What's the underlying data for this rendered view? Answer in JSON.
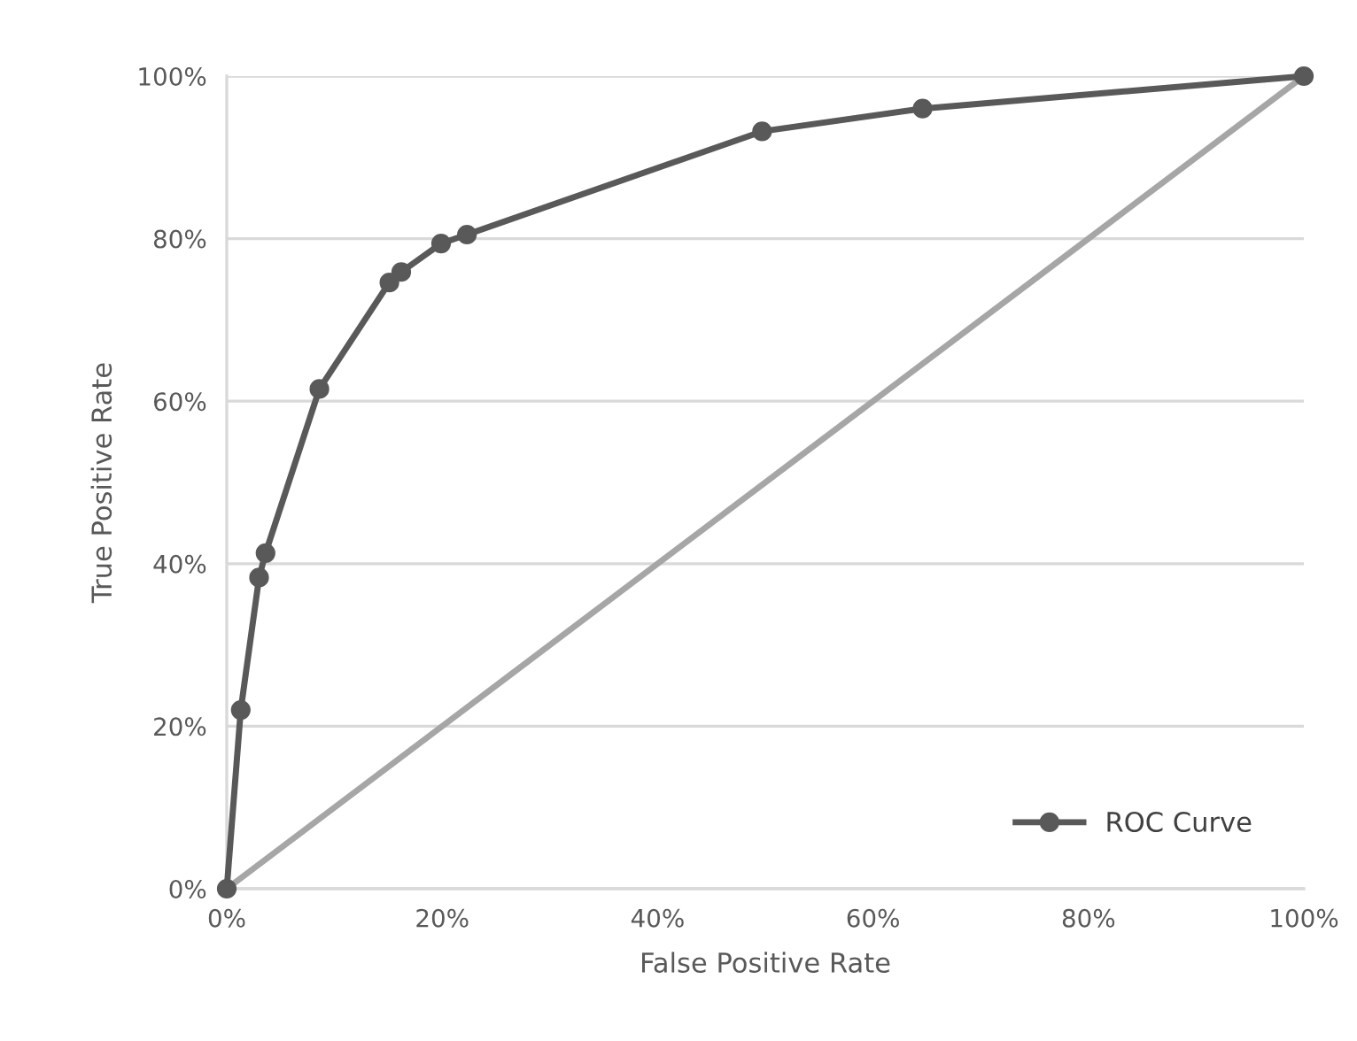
{
  "chart_data": {
    "type": "line",
    "xlabel": "False Positive Rate",
    "ylabel": "True Positive Rate",
    "series": [
      {
        "name": "ROC Curve",
        "color": "#595959",
        "marker": "circle",
        "x": [
          0,
          1.3,
          3.0,
          3.6,
          8.6,
          15.1,
          16.2,
          19.9,
          22.3,
          49.7,
          64.6,
          100
        ],
        "values": [
          0,
          22.0,
          38.3,
          41.3,
          61.5,
          74.6,
          75.9,
          79.4,
          80.5,
          93.2,
          96.0,
          100
        ]
      },
      {
        "color": "#a6a6a6",
        "marker": "none",
        "x": [
          0,
          100
        ],
        "values": [
          0,
          100
        ]
      }
    ],
    "xlim": [
      0,
      100
    ],
    "ylim": [
      0,
      100
    ],
    "xticks": [
      {
        "value": 0,
        "label": "0%"
      },
      {
        "value": 20,
        "label": "20%"
      },
      {
        "value": 40,
        "label": "40%"
      },
      {
        "value": 60,
        "label": "60%"
      },
      {
        "value": 80,
        "label": "80%"
      },
      {
        "value": 100,
        "label": "100%"
      }
    ],
    "yticks": [
      {
        "value": 0,
        "label": "0%"
      },
      {
        "value": 20,
        "label": "20%"
      },
      {
        "value": 40,
        "label": "40%"
      },
      {
        "value": 60,
        "label": "60%"
      },
      {
        "value": 80,
        "label": "80%"
      },
      {
        "value": 100,
        "label": "100%"
      }
    ],
    "grid": "y",
    "legend": "bottom right",
    "line_style": "solid"
  }
}
